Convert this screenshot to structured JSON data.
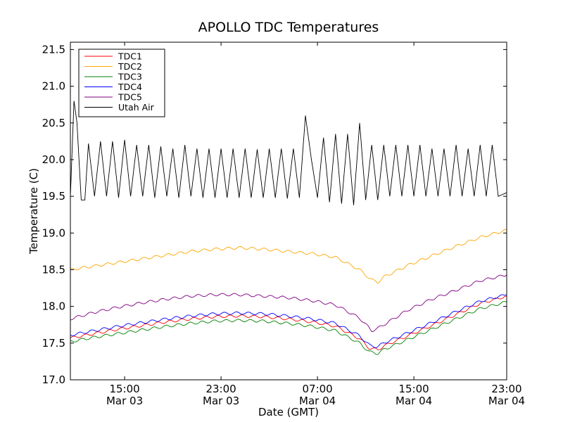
{
  "chart_data": {
    "type": "line",
    "title": "APOLLO TDC Temperatures",
    "xlabel": "Date (GMT)",
    "ylabel": "Temperature (C)",
    "x_unit": "hours since Mar 03 10:30 GMT",
    "xlim": [
      0,
      36.2
    ],
    "ylim": [
      17.0,
      21.6
    ],
    "y_ticks": [
      "17.0",
      "17.5",
      "18.0",
      "18.5",
      "19.0",
      "19.5",
      "20.0",
      "20.5",
      "21.0",
      "21.5"
    ],
    "y_tick_values": [
      17.0,
      17.5,
      18.0,
      18.5,
      19.0,
      19.5,
      20.0,
      20.5,
      21.0,
      21.5
    ],
    "x_ticks": [
      {
        "value": 4.5,
        "time": "15:00",
        "date": "Mar 03"
      },
      {
        "value": 12.5,
        "time": "23:00",
        "date": "Mar 03"
      },
      {
        "value": 20.5,
        "time": "07:00",
        "date": "Mar 04"
      },
      {
        "value": 28.5,
        "time": "15:00",
        "date": "Mar 04"
      },
      {
        "value": 36.5,
        "time": "23:00",
        "date": "Mar 04"
      }
    ],
    "legend_position": "top-left",
    "legend": [
      "TDC1",
      "TDC2",
      "TDC3",
      "TDC4",
      "TDC5",
      "Utah Air"
    ],
    "series": [
      {
        "name": "TDC1",
        "color": "#ff0000",
        "x": [
          0,
          2,
          4,
          6,
          8,
          10,
          12,
          14,
          16,
          18,
          20,
          22,
          24,
          24.8,
          25.5,
          26,
          28,
          30,
          32,
          34,
          36.2
        ],
        "y": [
          17.57,
          17.63,
          17.69,
          17.74,
          17.79,
          17.83,
          17.86,
          17.87,
          17.86,
          17.83,
          17.79,
          17.73,
          17.56,
          17.43,
          17.41,
          17.46,
          17.6,
          17.74,
          17.89,
          18.04,
          18.14
        ]
      },
      {
        "name": "TDC2",
        "color": "#ffa500",
        "x": [
          0,
          2,
          4,
          6,
          8,
          10,
          12,
          14,
          16,
          18,
          20,
          22,
          24,
          25,
          25.5,
          26,
          28,
          30,
          32,
          34,
          36.2
        ],
        "y": [
          18.5,
          18.55,
          18.6,
          18.65,
          18.7,
          18.75,
          18.78,
          18.8,
          18.78,
          18.75,
          18.72,
          18.67,
          18.5,
          18.36,
          18.33,
          18.4,
          18.56,
          18.69,
          18.82,
          18.94,
          19.04
        ]
      },
      {
        "name": "TDC3",
        "color": "#008000",
        "x": [
          0,
          2,
          4,
          6,
          8,
          10,
          12,
          14,
          16,
          18,
          20,
          22,
          24,
          24.8,
          25.5,
          26,
          28,
          30,
          32,
          34,
          36.2
        ],
        "y": [
          17.52,
          17.58,
          17.63,
          17.68,
          17.73,
          17.77,
          17.8,
          17.81,
          17.8,
          17.77,
          17.73,
          17.67,
          17.5,
          17.38,
          17.36,
          17.41,
          17.55,
          17.69,
          17.83,
          17.97,
          18.06
        ]
      },
      {
        "name": "TDC4",
        "color": "#0000ff",
        "x": [
          0,
          2,
          4,
          6,
          8,
          10,
          12,
          14,
          16,
          18,
          20,
          22,
          24,
          24.8,
          25.5,
          26,
          28,
          30,
          32,
          34,
          36.2
        ],
        "y": [
          17.61,
          17.67,
          17.73,
          17.78,
          17.83,
          17.87,
          17.9,
          17.91,
          17.9,
          17.87,
          17.83,
          17.77,
          17.6,
          17.47,
          17.45,
          17.5,
          17.64,
          17.78,
          17.93,
          18.07,
          18.16
        ]
      },
      {
        "name": "TDC5",
        "color": "#800080",
        "x": [
          0,
          2,
          4,
          6,
          8,
          10,
          12,
          14,
          16,
          18,
          20,
          22,
          24,
          25,
          25.5,
          26,
          28,
          30,
          32,
          34,
          36.2
        ],
        "y": [
          17.83,
          17.92,
          17.99,
          18.05,
          18.1,
          18.14,
          18.16,
          18.16,
          18.14,
          18.12,
          18.08,
          18.02,
          17.84,
          17.67,
          17.7,
          17.75,
          17.95,
          18.1,
          18.22,
          18.35,
          18.43
        ]
      },
      {
        "name": "Utah Air",
        "color": "#000000",
        "x": [
          0,
          0.3,
          0.55,
          0.9,
          1.2,
          1.5,
          2.0,
          2.5,
          3.0,
          3.5,
          4.0,
          4.5,
          5.0,
          5.5,
          6.0,
          6.5,
          7.0,
          7.5,
          8.0,
          8.5,
          9.0,
          9.5,
          10.0,
          10.5,
          11.0,
          11.5,
          12.0,
          12.5,
          13.0,
          13.5,
          14.0,
          14.5,
          15.0,
          15.5,
          16.0,
          16.5,
          17.0,
          17.5,
          18.0,
          18.5,
          19.0,
          19.5,
          20.0,
          20.5,
          21.0,
          21.5,
          22.0,
          22.5,
          23.0,
          23.5,
          24.0,
          24.5,
          25.0,
          25.5,
          26.0,
          26.5,
          27.0,
          27.5,
          28.0,
          28.5,
          29.0,
          29.5,
          30.0,
          30.5,
          31.0,
          31.5,
          32.0,
          32.5,
          33.0,
          33.5,
          34.0,
          34.5,
          35.0,
          35.5,
          36.2
        ],
        "y": [
          19.5,
          20.8,
          20.5,
          19.45,
          19.45,
          20.22,
          19.5,
          20.25,
          19.5,
          20.25,
          19.48,
          20.27,
          19.5,
          20.2,
          19.5,
          20.2,
          19.48,
          20.18,
          19.5,
          20.15,
          19.48,
          20.2,
          19.5,
          20.15,
          19.48,
          20.15,
          19.48,
          20.15,
          19.48,
          20.15,
          19.48,
          20.15,
          19.48,
          20.14,
          19.48,
          20.15,
          19.48,
          20.15,
          19.47,
          20.15,
          19.48,
          20.6,
          20.0,
          19.48,
          20.3,
          19.42,
          20.35,
          19.4,
          20.35,
          19.38,
          20.5,
          19.45,
          20.2,
          19.45,
          20.2,
          19.5,
          20.2,
          19.5,
          20.2,
          19.5,
          20.2,
          19.5,
          20.15,
          19.5,
          20.15,
          19.5,
          20.2,
          19.5,
          20.15,
          19.5,
          20.2,
          19.5,
          20.2,
          19.5,
          19.55
        ]
      }
    ]
  }
}
